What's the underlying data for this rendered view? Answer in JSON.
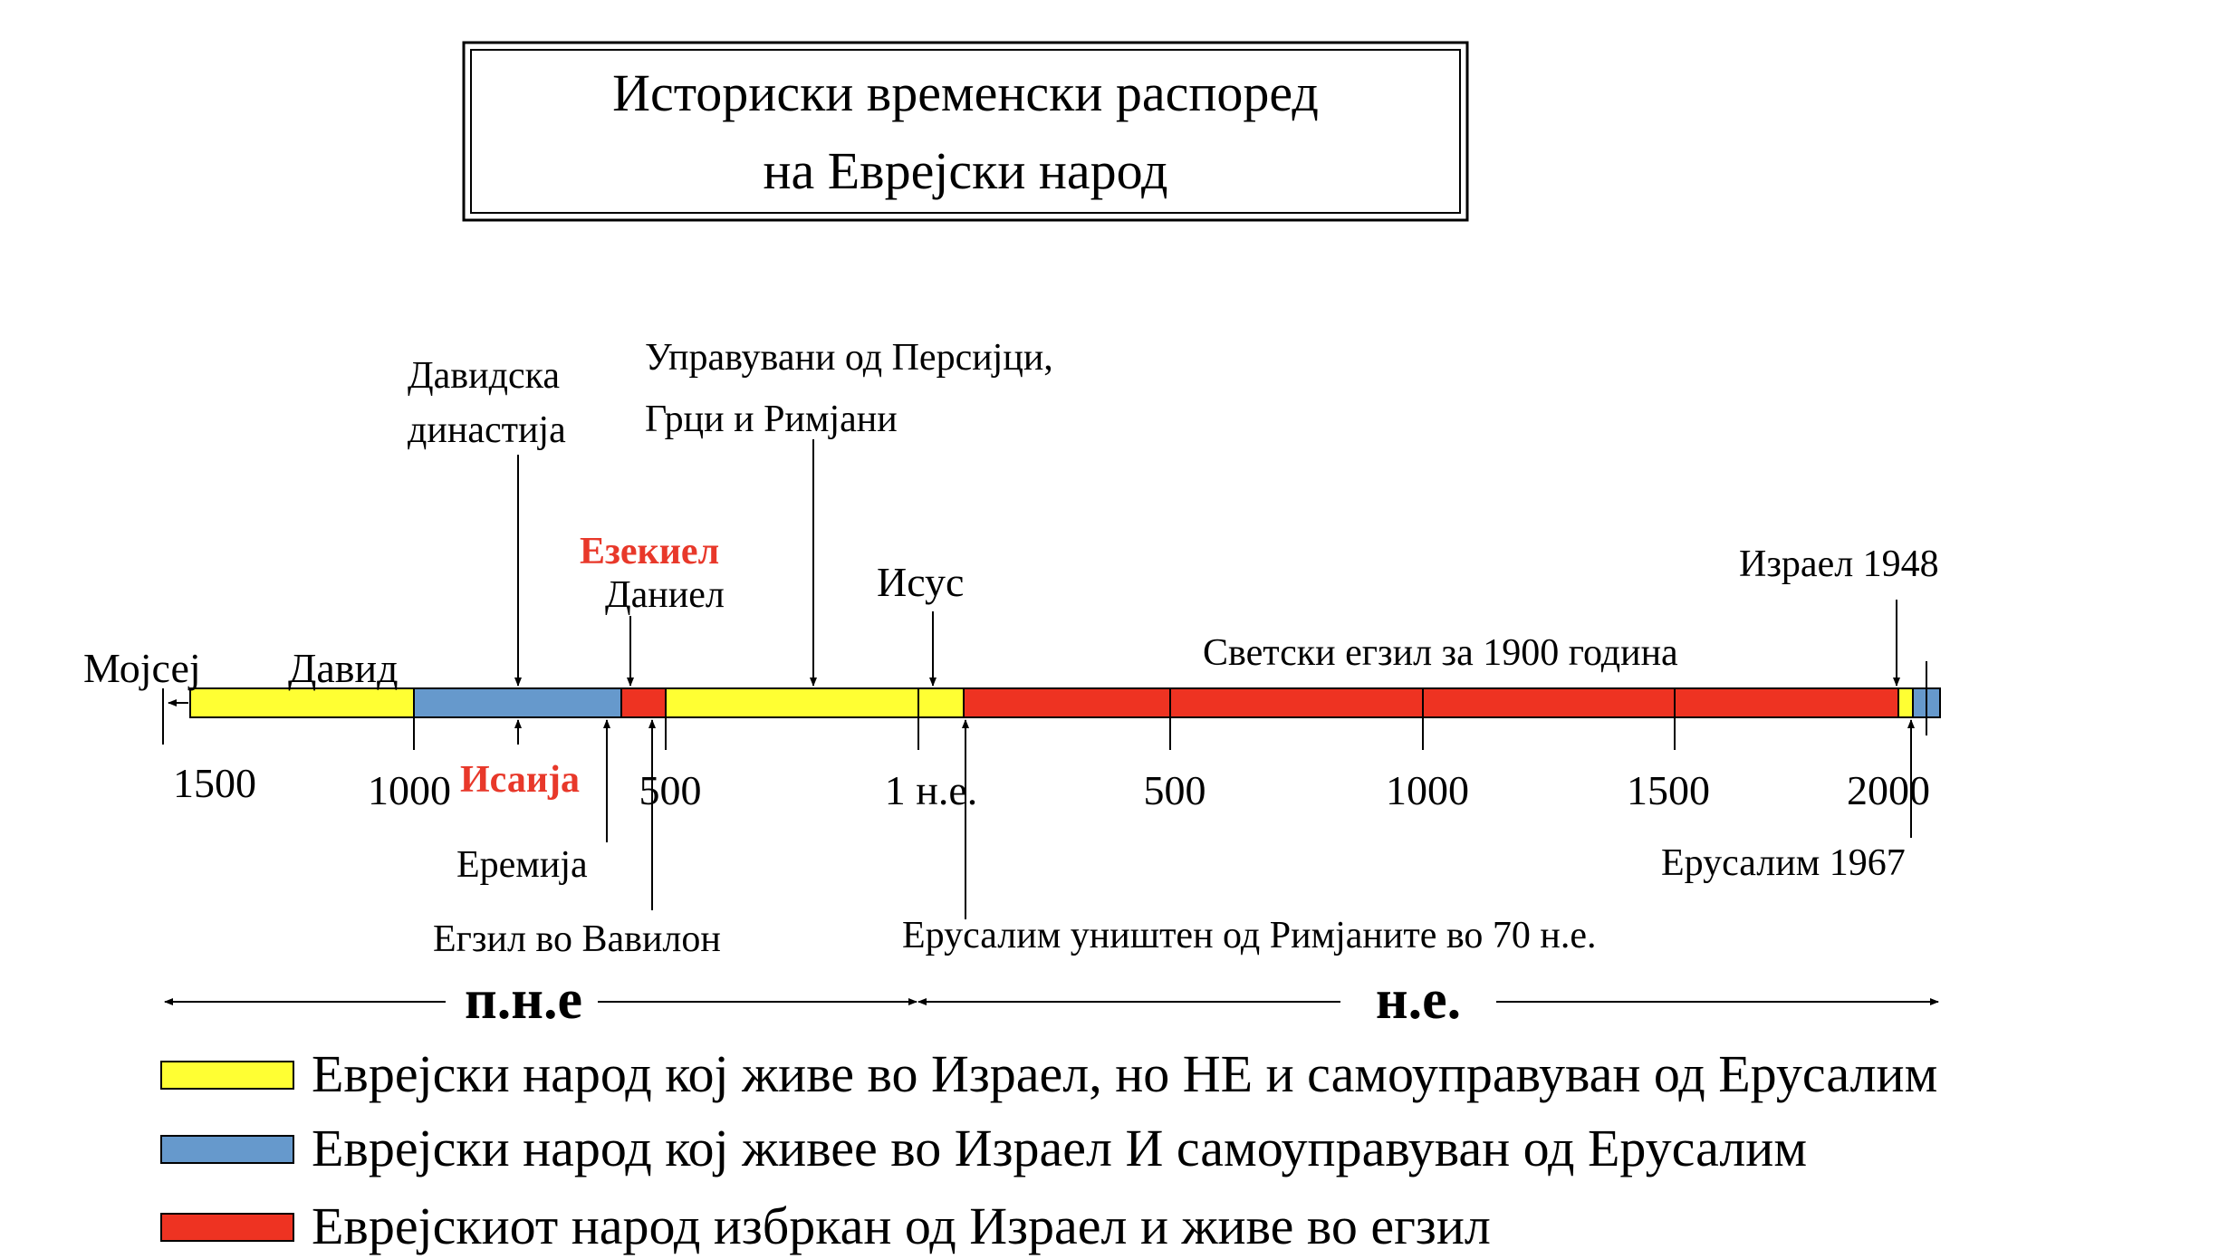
{
  "title": {
    "line1": "Историски временски распоред",
    "line2": "на Еврејски народ"
  },
  "colors": {
    "yellow": "#FFFF33",
    "blue": "#6699CC",
    "red": "#EE3322",
    "accent_text": "#E8382A"
  },
  "axis_ticks": [
    "1500",
    "1000",
    "500",
    "1 н.е.",
    "500",
    "1000",
    "1500",
    "2000"
  ],
  "top_labels": {
    "mojsej": "Мојсеј",
    "david": "Давид",
    "davidska_1": "Давидска",
    "davidska_2": "династија",
    "upravuvani_1": "Управувани  од Персијци,",
    "upravuvani_2": "Грци и Римјани",
    "ezekiel": "Езекиел",
    "daniel": "Даниел",
    "isus": "Исус",
    "svetski": "Светски егзил за 1900 година",
    "izrael": "Израел 1948"
  },
  "bottom_labels": {
    "isaija": "Исаија",
    "eremija": "Еремија",
    "egzil": "Егзил во Вавилон",
    "erusalim70": "Ерусалим уништен од Римјаните во 70 н.е.",
    "erusalim1967": "Ерусалим 1967"
  },
  "eras": {
    "bce": "п.н.е",
    "ce": "н.е."
  },
  "legend": [
    {
      "color": "yellow",
      "text": "Еврејски народ кој живе во Израел, но НЕ и самоуправуван од Ерусалим"
    },
    {
      "color": "blue",
      "text": "Еврејски народ кој живее во Израел И самоуправуван од Ерусалим"
    },
    {
      "color": "red",
      "text": "Еврејскиот народ избркан од Израел и живе во егзил"
    }
  ]
}
